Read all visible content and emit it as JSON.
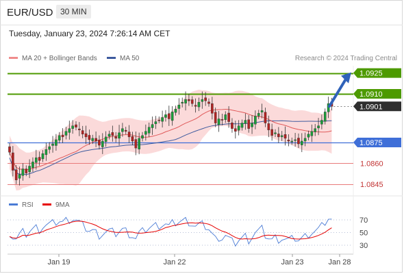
{
  "header": {
    "symbol": "EUR/USD",
    "timeframe": "30 MIN",
    "datetime": "Tuesday, January 23, 2024 7:26:14 AM CET"
  },
  "legend": {
    "ma20": "MA 20 + Bollinger Bands",
    "ma50": "MA 50",
    "credit": "Research © 2024 Trading Central"
  },
  "rsi_legend": {
    "rsi": "RSI",
    "ma9": "9MA"
  },
  "colors": {
    "resistance": "#4d9a00",
    "pivot": "#3f6fd8",
    "support": "#e87a7a",
    "current": "#2e2e2e",
    "ma20": "#e05a5a",
    "ma50": "#3d5a9e",
    "bollinger_fill": "#fbd6d6",
    "candle_up": "#1a9e3a",
    "candle_down": "#b22222",
    "rsi": "#4a7bd5",
    "rsi_ma": "#e60000",
    "arrow": "#2f62b9"
  },
  "chart_data": [
    {
      "type": "candlestick",
      "title": "EUR/USD 30 MIN",
      "x_ticks": [
        "Jan 19",
        "Jan 22",
        "Jan 23",
        "Jan 28"
      ],
      "ylim": [
        1.0838,
        1.0945
      ],
      "levels": [
        {
          "label": "1.0925",
          "value": 1.0925,
          "role": "resistance"
        },
        {
          "label": "1.0910",
          "value": 1.091,
          "role": "resistance"
        },
        {
          "label": "1.0901",
          "value": 1.0901,
          "role": "current"
        },
        {
          "label": "1.0875",
          "value": 1.0875,
          "role": "pivot"
        },
        {
          "label": "1.0860",
          "value": 1.086,
          "role": "support"
        },
        {
          "label": "1.0845",
          "value": 1.0845,
          "role": "support"
        }
      ],
      "closes": [
        1.0868,
        1.0855,
        1.0848,
        1.0852,
        1.0856,
        1.0853,
        1.0858,
        1.0861,
        1.0864,
        1.0862,
        1.0867,
        1.087,
        1.0872,
        1.0874,
        1.0877,
        1.088,
        1.0879,
        1.0883,
        1.0885,
        1.0887,
        1.0886,
        1.0884,
        1.0881,
        1.0879,
        1.0877,
        1.0878,
        1.0876,
        1.0873,
        1.0876,
        1.0879,
        1.0881,
        1.088,
        1.0878,
        1.0882,
        1.0885,
        1.0883,
        1.0879,
        1.0876,
        1.0871,
        1.0878,
        1.088,
        1.0883,
        1.0886,
        1.0888,
        1.089,
        1.0891,
        1.0893,
        1.0895,
        1.0892,
        1.0897,
        1.0899,
        1.0902,
        1.0904,
        1.0906,
        1.0905,
        1.0903,
        1.0901,
        1.0904,
        1.0906,
        1.0905,
        1.0903,
        1.0896,
        1.0889,
        1.0892,
        1.0891,
        1.0895,
        1.089,
        1.0885,
        1.0883,
        1.0887,
        1.0889,
        1.0891,
        1.0885,
        1.0889,
        1.0894,
        1.0896,
        1.0898,
        1.0889,
        1.0884,
        1.088,
        1.0882,
        1.0879,
        1.088,
        1.0878,
        1.0876,
        1.0876,
        1.0877,
        1.0874,
        1.0876,
        1.0878,
        1.0881,
        1.0883,
        1.0885,
        1.0887,
        1.0891,
        1.0897,
        1.0903,
        1.0901
      ],
      "series": [
        {
          "name": "MA 20 + Bollinger Bands",
          "role": "ma20"
        },
        {
          "name": "MA 50",
          "role": "ma50"
        }
      ],
      "forecast_arrow": {
        "from": 1.0901,
        "to": 1.0925
      }
    },
    {
      "type": "line",
      "title": "RSI",
      "y_ticks": [
        "70",
        "50",
        "30"
      ],
      "ylim": [
        25,
        75
      ],
      "series": [
        {
          "name": "RSI",
          "role": "rsi"
        },
        {
          "name": "9MA",
          "role": "rsi_ma"
        }
      ]
    }
  ]
}
